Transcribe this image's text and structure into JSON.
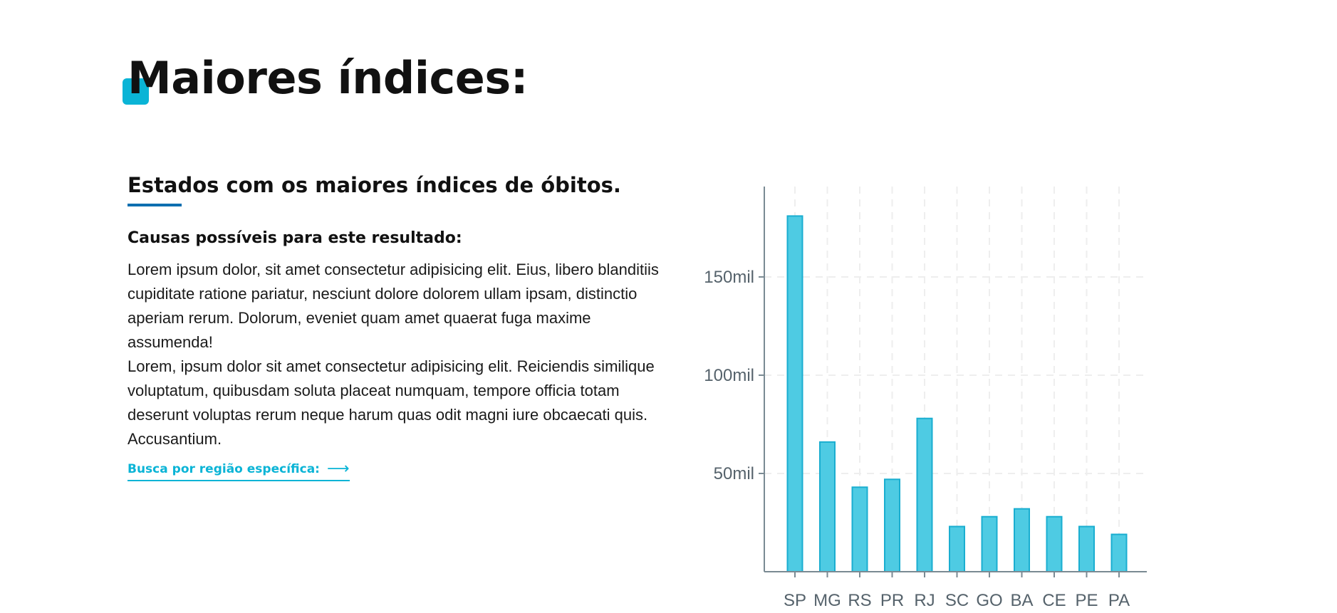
{
  "page": {
    "title": "Maiores índices:"
  },
  "section": {
    "subtitle": "Estados com os maiores índices de óbitos.",
    "causes_heading": "Causas possíveis para este resultado:",
    "paragraph_1": "Lorem ipsum dolor, sit amet consectetur adipisicing elit. Eius, libero blanditiis cupiditate ratione pariatur, nesciunt dolore dolorem ullam ipsam, distinctio aperiam rerum. Dolorum, eveniet quam amet quaerat fuga maxime assumenda!",
    "paragraph_2": "Lorem, ipsum dolor sit amet consectetur adipisicing elit. Reiciendis similique voluptatum, quibusdam soluta placeat numquam, tempore officia totam deserunt voluptas rerum neque harum quas odit magni iure obcaecati quis. Accusantium.",
    "link_label": "Busca por região específica:",
    "link_arrow": "⟶"
  },
  "colors": {
    "accent": "#0ab4d6",
    "underline": "#0e6fb0",
    "bar_fill": "#4ecbe3",
    "bar_stroke": "#1aaed0",
    "axis": "#7a8a93",
    "grid": "#eeeeee"
  },
  "chart_data": {
    "type": "bar",
    "categories": [
      "SP",
      "MG",
      "RS",
      "PR",
      "RJ",
      "SC",
      "GO",
      "BA",
      "CE",
      "PE",
      "PA"
    ],
    "values": [
      181,
      66,
      43,
      47,
      78,
      23,
      28,
      32,
      28,
      23,
      19
    ],
    "y_tick_values": [
      50,
      100,
      150
    ],
    "y_tick_labels": [
      "50mil",
      "100mil",
      "150mil"
    ],
    "ylim": [
      0,
      196
    ],
    "grid": true,
    "title": "",
    "xlabel": "",
    "ylabel": ""
  }
}
